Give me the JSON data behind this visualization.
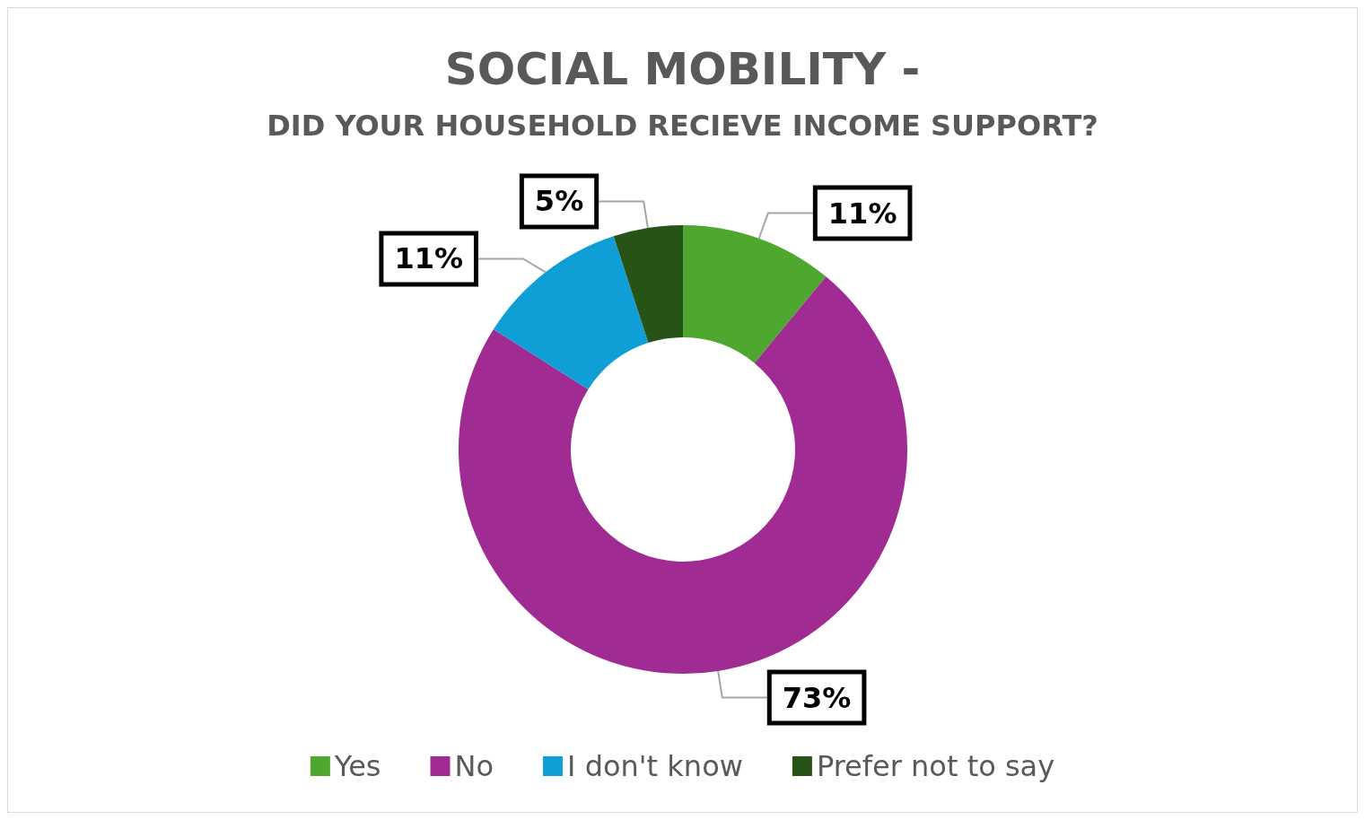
{
  "chart_data": {
    "type": "donut",
    "title": "SOCIAL MOBILITY -",
    "subtitle": "DID YOUR HOUSEHOLD RECIEVE INCOME SUPPORT?",
    "categories": [
      "Yes",
      "No",
      "I don't know",
      "Prefer not to say"
    ],
    "values": [
      11,
      73,
      11,
      5
    ],
    "colors": [
      "#4ea72e",
      "#a02b93",
      "#0f9ed5",
      "#275317"
    ],
    "value_labels": [
      "11%",
      "73%",
      "11%",
      "5%"
    ],
    "legend": "bottom"
  }
}
